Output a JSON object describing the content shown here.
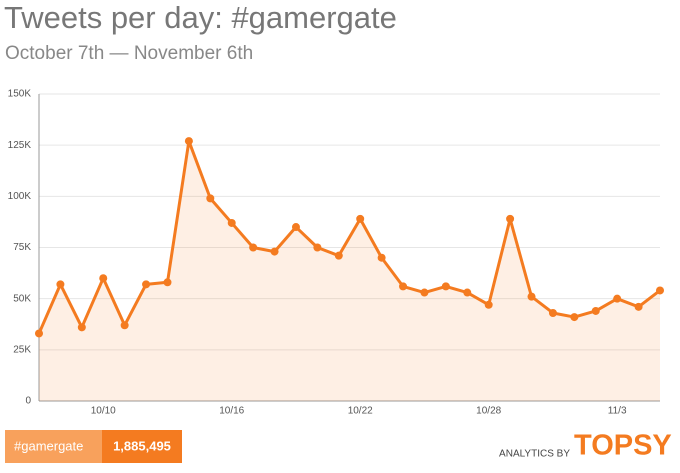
{
  "chart_data": {
    "type": "line",
    "title": "Tweets per day: #gamergate",
    "subtitle": "October 7th — November 6th",
    "categories": [
      null,
      null,
      null,
      "10/10",
      null,
      null,
      null,
      null,
      null,
      "10/16",
      null,
      null,
      null,
      null,
      null,
      "10/22",
      null,
      null,
      null,
      null,
      null,
      "10/28",
      null,
      null,
      null,
      null,
      null,
      "11/3",
      null,
      null
    ],
    "series": [
      {
        "name": "#gamergate",
        "color": "#f47b20",
        "values": [
          33000,
          57000,
          36000,
          60000,
          37000,
          57000,
          58000,
          127000,
          99000,
          87000,
          75000,
          73000,
          85000,
          75000,
          71000,
          89000,
          70000,
          56000,
          53000,
          56000,
          53000,
          47000,
          89000,
          51000,
          43000,
          41000,
          44000,
          50000,
          46000,
          54000
        ]
      }
    ],
    "total": "1,885,495",
    "ylim": [
      0,
      150000
    ],
    "yticks": [
      0,
      {
        "value": 25000,
        "label": "25K"
      },
      {
        "value": 50000,
        "label": "50K"
      },
      {
        "value": 75000,
        "label": "75K"
      },
      {
        "value": 100000,
        "label": "100K"
      },
      {
        "value": 125000,
        "label": "125K"
      },
      {
        "value": 150000,
        "label": "150K"
      }
    ],
    "grid": true,
    "branding": {
      "prefix": "ANALYTICS BY",
      "name": "TOPSY"
    }
  }
}
